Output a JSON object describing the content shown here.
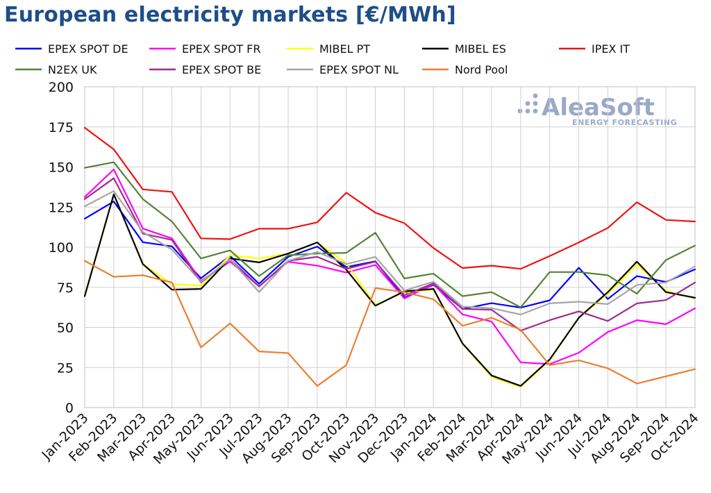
{
  "logo": {
    "name": "AleaSoft",
    "tagline": "ENERGY FORECASTING"
  },
  "chart_data": {
    "type": "line",
    "title": "European electricity markets [€/MWh]",
    "xlabel": "",
    "ylabel": "",
    "ylim": [
      0,
      200
    ],
    "yticks": [
      0,
      25,
      50,
      75,
      100,
      125,
      150,
      175,
      200
    ],
    "grid": true,
    "legend_position": "top",
    "categories": [
      "Jan-2023",
      "Feb-2023",
      "Mar-2023",
      "Apr-2023",
      "May-2023",
      "Jun-2023",
      "Jul-2023",
      "Aug-2023",
      "Sep-2023",
      "Oct-2023",
      "Nov-2023",
      "Dec-2023",
      "Jan-2024",
      "Feb-2024",
      "Mar-2024",
      "Apr-2024",
      "May-2024",
      "Jun-2024",
      "Jul-2024",
      "Aug-2024",
      "Sep-2024",
      "Oct-2024"
    ],
    "series": [
      {
        "name": "EPEX SPOT DE",
        "color": "#0000ff",
        "values": [
          117.8,
          128.5,
          103.1,
          100.5,
          80.6,
          94.6,
          77.2,
          94.0,
          100.4,
          87.6,
          91.2,
          68.6,
          76.6,
          61.5,
          65.1,
          62.3,
          66.9,
          87.2,
          67.7,
          82.0,
          78.3,
          86.2
        ]
      },
      {
        "name": "EPEX SPOT FR",
        "color": "#ff00ff",
        "values": [
          131.3,
          148.5,
          111.6,
          105.5,
          79.0,
          91.1,
          75.6,
          90.9,
          88.5,
          84.2,
          88.9,
          68.0,
          77.0,
          58.1,
          53.6,
          28.2,
          27.1,
          34.2,
          47.1,
          54.5,
          52.0,
          61.9
        ]
      },
      {
        "name": "MIBEL PT",
        "color": "#ffff00",
        "values": [
          70.0,
          133.0,
          89.5,
          77.0,
          76.0,
          95.0,
          93.0,
          96.0,
          103.0,
          90.0,
          64.0,
          72.0,
          73.5,
          40.0,
          19.0,
          13.0,
          29.5,
          56.0,
          71.0,
          89.0,
          73.0,
          68.0
        ]
      },
      {
        "name": "MIBEL ES",
        "color": "#000000",
        "values": [
          69.5,
          133.0,
          89.5,
          73.5,
          74.0,
          93.0,
          90.5,
          96.0,
          103.0,
          86.0,
          63.5,
          72.5,
          74.0,
          40.0,
          20.0,
          13.5,
          30.0,
          56.0,
          72.0,
          91.0,
          72.0,
          68.5
        ]
      },
      {
        "name": "IPEX IT",
        "color": "#ee1111",
        "values": [
          174.5,
          161.0,
          136.0,
          134.5,
          105.5,
          105.0,
          111.5,
          111.5,
          115.5,
          134.0,
          121.5,
          115.0,
          99.5,
          87.0,
          88.5,
          86.5,
          94.5,
          103.0,
          112.0,
          128.0,
          117.0,
          116.0
        ]
      },
      {
        "name": "N2EX UK",
        "color": "#548235",
        "values": [
          149.5,
          153.0,
          130.0,
          116.0,
          93.0,
          98.0,
          82.0,
          95.0,
          96.0,
          96.5,
          109.0,
          80.5,
          83.5,
          69.5,
          72.0,
          62.5,
          84.5,
          84.5,
          82.5,
          71.0,
          92.0,
          101.0
        ]
      },
      {
        "name": "EPEX SPOT BE",
        "color": "#9b2d8f",
        "values": [
          130.0,
          143.0,
          108.5,
          104.5,
          78.0,
          92.5,
          75.5,
          91.5,
          94.0,
          86.5,
          91.0,
          70.0,
          77.5,
          61.5,
          61.0,
          48.0,
          54.5,
          60.0,
          54.0,
          65.0,
          67.0,
          78.0
        ]
      },
      {
        "name": "EPEX SPOT NL",
        "color": "#a6a6a6",
        "values": [
          125.5,
          135.0,
          109.5,
          98.5,
          78.5,
          92.5,
          72.0,
          91.5,
          97.0,
          89.5,
          94.0,
          73.0,
          78.5,
          63.0,
          62.0,
          58.0,
          65.0,
          66.0,
          64.5,
          76.5,
          78.0,
          88.0
        ]
      },
      {
        "name": "Nord Pool",
        "color": "#ed7d31",
        "values": [
          91.5,
          81.5,
          82.5,
          78.0,
          37.5,
          52.5,
          35.0,
          34.0,
          13.5,
          26.5,
          74.5,
          72.0,
          67.5,
          51.0,
          56.0,
          48.5,
          26.5,
          29.5,
          24.5,
          15.0,
          19.5,
          24.0
        ]
      }
    ]
  }
}
